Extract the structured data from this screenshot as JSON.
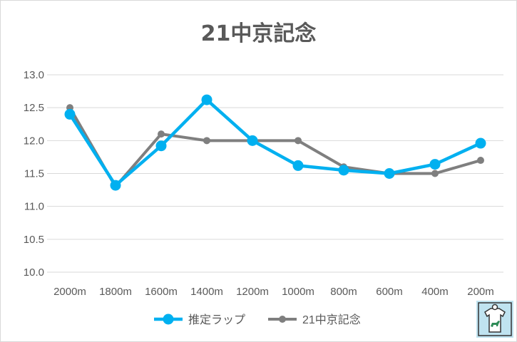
{
  "chart_data": {
    "type": "line",
    "title": "21中京記念",
    "categories": [
      "2000m",
      "1800m",
      "1600m",
      "1400m",
      "1200m",
      "1000m",
      "800m",
      "600m",
      "400m",
      "200m"
    ],
    "ylim": [
      10.0,
      13.0
    ],
    "yticks": [
      "10.0",
      "10.5",
      "11.0",
      "11.5",
      "12.0",
      "12.5",
      "13.0"
    ],
    "grid": true,
    "legend_position": "bottom",
    "series": [
      {
        "name": "推定ラップ",
        "color": "#00b0f0",
        "values": [
          12.4,
          11.32,
          11.92,
          12.62,
          12.0,
          11.62,
          11.55,
          11.5,
          11.64,
          11.96
        ]
      },
      {
        "name": "21中京記念",
        "color": "#7f7f7f",
        "values": [
          12.5,
          11.3,
          12.1,
          12.0,
          12.0,
          12.0,
          11.6,
          11.5,
          11.5,
          11.7
        ]
      }
    ]
  },
  "logo": {
    "icon": "horse-shirt-logo-icon",
    "bg_color": "#bfe3f0",
    "shirt_color": "#ffffff",
    "horse_color": "#2e8b57"
  }
}
